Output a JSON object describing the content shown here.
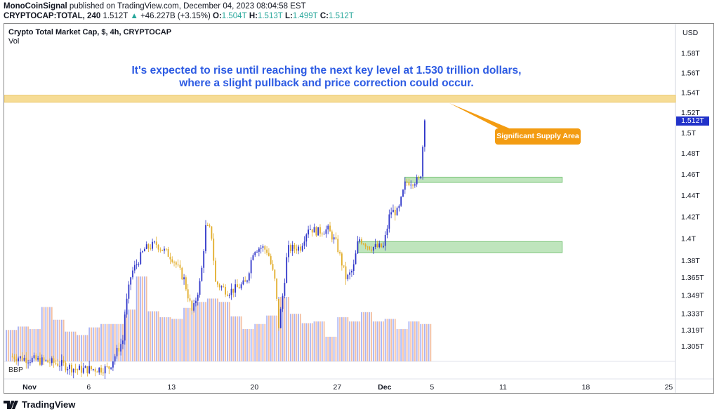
{
  "header": {
    "author": "MonoCoinSignal",
    "published": "published on TradingView.com, December 04, 2023 08:04:58 EST",
    "symbol": "CRYPTOCAP:TOTAL, 240",
    "last": "1.512T",
    "change": "+46.227B (+3.15%)",
    "o_label": "O:",
    "o": "1.504T",
    "h_label": "H:",
    "h": "1.513T",
    "l_label": "L:",
    "l": "1.499T",
    "c_label": "C:",
    "c": "1.512T"
  },
  "legend": {
    "title": "Crypto Total Market Cap, $, 4h, CRYPTOCAP",
    "vol": "Vol",
    "bbp": "BBP"
  },
  "currency": "USD",
  "annotation": {
    "line1": "It's expected to rise until reaching the next key level at 1.530 trillion dollars,",
    "line2": "where a slight pullback and price correction could occur.",
    "callout": "Significant Supply Area"
  },
  "brand": "TradingView",
  "colors": {
    "up": "#2f36c9",
    "down": "#e2ad2a",
    "vol_up": "#9aa6f2",
    "vol_down": "#f2b48f",
    "supply": "#f6d98a",
    "demand": "#b9e3b6",
    "note": "#2d5be3",
    "callout": "#f39c12"
  },
  "chart_data": {
    "type": "candlestick",
    "scale": "log",
    "interval": "4h",
    "last_price": "1.512T",
    "y_ticks": [
      {
        "v": 1.58,
        "label": "1.58T"
      },
      {
        "v": 1.56,
        "label": "1.56T"
      },
      {
        "v": 1.54,
        "label": "1.54T"
      },
      {
        "v": 1.52,
        "label": "1.52T"
      },
      {
        "v": 1.5,
        "label": "1.5T"
      },
      {
        "v": 1.48,
        "label": "1.48T"
      },
      {
        "v": 1.46,
        "label": "1.46T"
      },
      {
        "v": 1.44,
        "label": "1.44T"
      },
      {
        "v": 1.42,
        "label": "1.42T"
      },
      {
        "v": 1.4,
        "label": "1.4T"
      },
      {
        "v": 1.38,
        "label": "1.38T"
      },
      {
        "v": 1.365,
        "label": "1.365T"
      },
      {
        "v": 1.349,
        "label": "1.349T"
      },
      {
        "v": 1.333,
        "label": "1.333T"
      },
      {
        "v": 1.319,
        "label": "1.319T"
      },
      {
        "v": 1.305,
        "label": "1.305T"
      }
    ],
    "x_ticks": [
      {
        "d": "2023-11-01",
        "label": "Nov",
        "bold": true
      },
      {
        "d": "2023-11-06",
        "label": "6"
      },
      {
        "d": "2023-11-13",
        "label": "13"
      },
      {
        "d": "2023-11-20",
        "label": "20"
      },
      {
        "d": "2023-11-27",
        "label": "27"
      },
      {
        "d": "2023-12-01",
        "label": "Dec",
        "bold": true
      },
      {
        "d": "2023-12-05",
        "label": "5"
      },
      {
        "d": "2023-12-11",
        "label": "11"
      },
      {
        "d": "2023-12-18",
        "label": "18"
      },
      {
        "d": "2023-12-25",
        "label": "25"
      }
    ],
    "close_path": [
      {
        "t": "2023-10-30T12:00",
        "c": 1.296
      },
      {
        "t": "2023-11-01T12:00",
        "c": 1.293
      },
      {
        "t": "2023-11-03T12:00",
        "c": 1.29
      },
      {
        "t": "2023-11-05T00:00",
        "c": 1.285
      },
      {
        "t": "2023-11-07T15:00",
        "c": 1.286
      },
      {
        "t": "2023-11-08T20:00",
        "c": 1.31
      },
      {
        "t": "2023-11-08T23:00",
        "c": 1.33
      },
      {
        "t": "2023-11-09T13:00",
        "c": 1.368
      },
      {
        "t": "2023-11-10T16:00",
        "c": 1.39
      },
      {
        "t": "2023-11-11T15:00",
        "c": 1.395
      },
      {
        "t": "2023-11-13T01:00",
        "c": 1.382
      },
      {
        "t": "2023-11-14T00:00",
        "c": 1.363
      },
      {
        "t": "2023-11-14T17:00",
        "c": 1.333
      },
      {
        "t": "2023-11-15T10:00",
        "c": 1.363
      },
      {
        "t": "2023-11-15T20:00",
        "c": 1.41
      },
      {
        "t": "2023-11-16T07:00",
        "c": 1.407
      },
      {
        "t": "2023-11-16T16:00",
        "c": 1.36
      },
      {
        "t": "2023-11-17T17:00",
        "c": 1.352
      },
      {
        "t": "2023-11-18T10:00",
        "c": 1.355
      },
      {
        "t": "2023-11-19T06:00",
        "c": 1.36
      },
      {
        "t": "2023-11-19T21:00",
        "c": 1.39
      },
      {
        "t": "2023-11-20T14:00",
        "c": 1.392
      },
      {
        "t": "2023-11-21T02:00",
        "c": 1.388
      },
      {
        "t": "2023-11-21T17:00",
        "c": 1.36
      },
      {
        "t": "2023-11-22T00:00",
        "c": 1.322
      },
      {
        "t": "2023-11-22T10:00",
        "c": 1.355
      },
      {
        "t": "2023-11-22T18:00",
        "c": 1.39
      },
      {
        "t": "2023-11-23T20:00",
        "c": 1.392
      },
      {
        "t": "2023-11-24T12:00",
        "c": 1.41
      },
      {
        "t": "2023-11-25T06:00",
        "c": 1.406
      },
      {
        "t": "2023-11-26T04:00",
        "c": 1.408
      },
      {
        "t": "2023-11-26T21:00",
        "c": 1.395
      },
      {
        "t": "2023-11-27T17:00",
        "c": 1.363
      },
      {
        "t": "2023-11-28T07:00",
        "c": 1.372
      },
      {
        "t": "2023-11-28T18:00",
        "c": 1.4
      },
      {
        "t": "2023-11-29T17:00",
        "c": 1.392
      },
      {
        "t": "2023-11-30T20:00",
        "c": 1.392
      },
      {
        "t": "2023-12-01T02:00",
        "c": 1.405
      },
      {
        "t": "2023-12-01T10:00",
        "c": 1.425
      },
      {
        "t": "2023-12-02T02:00",
        "c": 1.424
      },
      {
        "t": "2023-12-02T17:00",
        "c": 1.452
      },
      {
        "t": "2023-12-03T23:00",
        "c": 1.454
      },
      {
        "t": "2023-12-04T04:00",
        "c": 1.487
      },
      {
        "t": "2023-12-04T08:00",
        "c": 1.512
      }
    ],
    "volume_start": "2023-10-30",
    "volume_index": [
      37,
      41,
      38,
      64,
      49,
      35,
      31,
      40,
      44,
      44,
      61,
      100,
      59,
      52,
      50,
      63,
      70,
      74,
      70,
      53,
      38,
      44,
      54,
      76,
      56,
      45,
      47,
      29,
      52,
      47,
      58,
      47,
      50,
      38,
      47,
      44
    ],
    "zones": [
      {
        "name": "supply",
        "from": 1.53,
        "to": 1.537,
        "start": "2023-10-30",
        "end": "open"
      },
      {
        "name": "demand-upper",
        "from": 1.452,
        "to": 1.457,
        "start": "2023-12-02T17:00",
        "end": "2023-12-16"
      },
      {
        "name": "demand-lower",
        "from": 1.387,
        "to": 1.397,
        "start": "2023-11-28T18:00",
        "end": "2023-12-16"
      }
    ]
  }
}
